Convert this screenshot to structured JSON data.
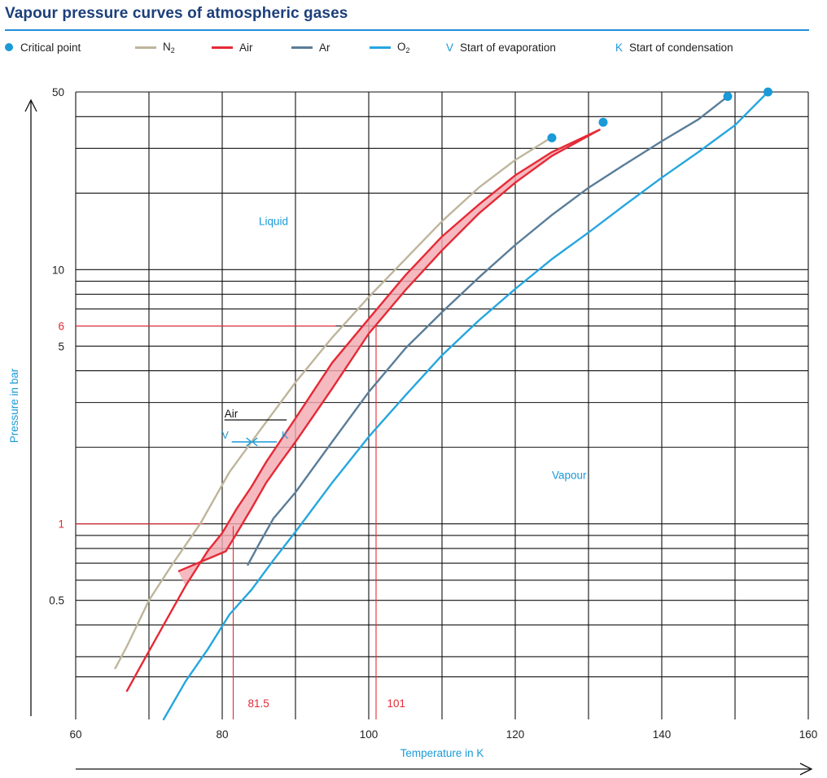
{
  "title": "Vapour pressure curves of atmospheric gases",
  "legend": {
    "critical_point": {
      "label": "Critical point",
      "color": "#1a9ad8"
    },
    "n2": {
      "label": "N",
      "sub": "2",
      "color": "#bfb59c"
    },
    "air": {
      "label": "Air",
      "color": "#e52a36"
    },
    "ar": {
      "label": "Ar",
      "color": "#5a7d98"
    },
    "o2": {
      "label": "O",
      "sub": "2",
      "color": "#25a6df"
    },
    "evap": {
      "letter": "V",
      "label": "Start of evaporation",
      "color": "#1a9ad8"
    },
    "cond": {
      "letter": "K",
      "label": "Start of condensation",
      "color": "#1a9ad8"
    }
  },
  "chart_data": {
    "type": "line",
    "title": "Vapour pressure curves of atmospheric gases",
    "xlabel": "Temperature in K",
    "ylabel": "Pressure in bar",
    "xlim": [
      60,
      160
    ],
    "ylim": [
      0.17,
      50
    ],
    "yscale": "log",
    "grid": true,
    "legend_position": "top",
    "x_ticks": [
      60,
      80,
      100,
      120,
      140,
      160
    ],
    "y_ticks": [
      {
        "value": 50,
        "label": "50"
      },
      {
        "value": 10,
        "label": "10"
      },
      {
        "value": 6,
        "label": "6",
        "highlight": true
      },
      {
        "value": 5,
        "label": "5"
      },
      {
        "value": 1,
        "label": "1",
        "highlight": true
      },
      {
        "value": 0.5,
        "label": "0.5"
      }
    ],
    "y_gridlines": [
      0.25,
      0.3,
      0.4,
      0.5,
      0.6,
      0.7,
      0.8,
      0.9,
      1,
      2,
      3,
      4,
      5,
      6,
      7,
      8,
      9,
      10,
      20,
      30,
      40,
      50
    ],
    "x_gridlines": [
      60,
      70,
      80,
      90,
      100,
      110,
      120,
      130,
      140,
      150,
      160
    ],
    "series": [
      {
        "key": "n2",
        "name": "N₂",
        "color": "#bfb59c",
        "x": [
          65.4,
          67,
          70,
          73,
          77,
          81,
          85,
          90,
          95,
          100,
          105,
          110,
          115,
          120,
          124.5
        ],
        "y": [
          0.27,
          0.33,
          0.5,
          0.68,
          1.0,
          1.6,
          2.3,
          3.6,
          5.4,
          7.8,
          11,
          15.5,
          21,
          27,
          32.5
        ]
      },
      {
        "key": "air_evap",
        "name": "Air",
        "color": "#e52a36",
        "x": [
          67,
          69,
          72,
          75,
          78,
          80,
          82,
          84,
          86,
          90,
          95,
          100,
          105,
          110,
          115,
          120,
          125,
          131.5
        ],
        "y": [
          0.22,
          0.28,
          0.4,
          0.57,
          0.78,
          0.92,
          1.15,
          1.4,
          1.75,
          2.6,
          4.3,
          6.4,
          9.5,
          13.5,
          18,
          23.5,
          29,
          35.5
        ]
      },
      {
        "key": "air_cond",
        "name": "Air",
        "color": "#e52a36",
        "x": [
          80.5,
          82,
          84,
          86,
          88,
          90,
          95,
          100,
          105,
          110,
          115,
          120,
          125,
          131.5
        ],
        "y": [
          0.78,
          0.92,
          1.15,
          1.45,
          1.75,
          2.1,
          3.4,
          5.6,
          8.3,
          11.9,
          16.6,
          22,
          28,
          35.5
        ]
      },
      {
        "key": "ar",
        "name": "Ar",
        "color": "#5a7d98",
        "x": [
          83.5,
          85,
          87,
          90,
          95,
          100,
          105,
          110,
          115,
          120,
          125,
          130,
          135,
          140,
          145,
          149
        ],
        "y": [
          0.69,
          0.83,
          1.05,
          1.33,
          2.1,
          3.3,
          4.9,
          6.8,
          9.3,
          12.5,
          16.4,
          21,
          26,
          32,
          39,
          48
        ]
      },
      {
        "key": "o2",
        "name": "O₂",
        "color": "#25a6df",
        "x": [
          72,
          75,
          78,
          81,
          84,
          87,
          90,
          95,
          100,
          105,
          110,
          115,
          120,
          125,
          130,
          135,
          140,
          145,
          150,
          154.5
        ],
        "y": [
          0.17,
          0.24,
          0.32,
          0.44,
          0.55,
          0.72,
          0.93,
          1.45,
          2.2,
          3.2,
          4.6,
          6.3,
          8.4,
          11,
          14,
          18,
          23,
          29,
          37,
          50
        ]
      }
    ],
    "critical_points": [
      {
        "name": "N₂",
        "x": 125,
        "y": 33
      },
      {
        "name": "Air",
        "x": 132,
        "y": 38
      },
      {
        "name": "Ar",
        "x": 149,
        "y": 48
      },
      {
        "name": "O₂",
        "x": 154.5,
        "y": 50
      }
    ],
    "reference_lines": [
      {
        "from": [
          60,
          6
        ],
        "to": [
          95.5,
          6
        ]
      },
      {
        "from": [
          60,
          1
        ],
        "to": [
          77.5,
          1
        ]
      },
      {
        "from": [
          81.5,
          0.17
        ],
        "to": [
          81.5,
          0.98
        ]
      },
      {
        "from": [
          101,
          0.17
        ],
        "to": [
          101,
          6
        ]
      }
    ],
    "annotations": [
      {
        "text": "Liquid",
        "x": 85,
        "y": 15,
        "color": "#1a9ad8"
      },
      {
        "text": "Vapour",
        "x": 125,
        "y": 1.5,
        "color": "#1a9ad8"
      },
      {
        "text": "81.5",
        "x": 83.5,
        "y": 0.19,
        "color": "#e52a36"
      },
      {
        "text": "101",
        "x": 102.5,
        "y": 0.19,
        "color": "#e52a36"
      }
    ],
    "air_marker": {
      "label": "Air",
      "v_label": "V",
      "k_label": "K",
      "y": 2.1,
      "v_x": 81.3,
      "k_x": 86.8
    }
  }
}
